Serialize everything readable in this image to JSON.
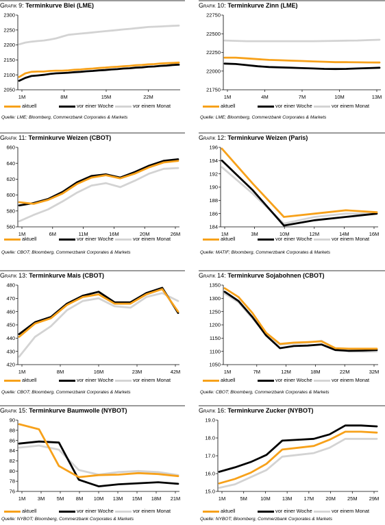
{
  "colors": {
    "aktuell": "#F7A11A",
    "week": "#000000",
    "month": "#D3D3D3",
    "rule": "#9A9A9A"
  },
  "legend": {
    "current": "aktuell",
    "week": "vor einer Woche",
    "month": "vor einem Monat"
  },
  "chart_data": [
    {
      "type": "line",
      "label_prefix": "Grafik 9:",
      "title": "Terminkurve Blei (LME)",
      "xticks": [
        "1M",
        "8M",
        "15M",
        "22M"
      ],
      "ylim": [
        2050,
        2300
      ],
      "yticks": [
        2050,
        2100,
        2150,
        2200,
        2250,
        2300
      ],
      "series": [
        {
          "name": "aktuell",
          "values": [
            2093,
            2105,
            2110,
            2111,
            2111,
            2113,
            2114,
            2114,
            2115,
            2117,
            2118,
            2120,
            2121,
            2123,
            2124,
            2126,
            2127,
            2129,
            2130,
            2132,
            2133,
            2135,
            2136,
            2138,
            2139,
            2140,
            2141
          ]
        },
        {
          "name": "vor einer Woche",
          "values": [
            2080,
            2090,
            2096,
            2098,
            2100,
            2103,
            2105,
            2106,
            2107,
            2109,
            2110,
            2112,
            2113,
            2115,
            2116,
            2118,
            2119,
            2121,
            2122,
            2124,
            2125,
            2127,
            2128,
            2130,
            2131,
            2133,
            2134
          ]
        },
        {
          "name": "vor einem Monat",
          "values": [
            2202,
            2208,
            2211,
            2213,
            2215,
            2218,
            2222,
            2228,
            2234,
            2236,
            2238,
            2240,
            2242,
            2244,
            2246,
            2248,
            2250,
            2252,
            2254,
            2256,
            2258,
            2260,
            2261,
            2262,
            2263,
            2264,
            2265
          ]
        }
      ],
      "source": "Quelle: LME; Bloomberg, Commerzbank Corporates & Markets"
    },
    {
      "type": "line",
      "label_prefix": "Grafik 10:",
      "title": "Terminkurve Zinn (LME)",
      "xticks": [
        "1M",
        "4M",
        "7M",
        "10M",
        "13M"
      ],
      "ylim": [
        21750,
        22750
      ],
      "yticks": [
        21750,
        22000,
        22250,
        22500,
        22750
      ],
      "series": [
        {
          "name": "aktuell",
          "values": [
            22180,
            22180,
            22170,
            22160,
            22150,
            22145,
            22140,
            22135,
            22130,
            22125,
            22120,
            22120,
            22118,
            22116,
            22115
          ]
        },
        {
          "name": "vor einer Woche",
          "values": [
            22100,
            22095,
            22080,
            22065,
            22055,
            22050,
            22045,
            22040,
            22035,
            22030,
            22028,
            22030,
            22035,
            22040,
            22045
          ]
        },
        {
          "name": "vor einem Monat",
          "values": [
            22410,
            22405,
            22400,
            22400,
            22400,
            22400,
            22400,
            22400,
            22400,
            22402,
            22405,
            22408,
            22410,
            22415,
            22420
          ]
        }
      ],
      "source": "Quelle: LME; Bloomberg, Commerzbank Corporates & Markets"
    },
    {
      "type": "line",
      "label_prefix": "Grafik 11:",
      "title": "Terminkurve Weizen (CBOT)",
      "xticks": [
        "1M",
        "6M",
        "11M",
        "16M",
        "20M",
        "26M"
      ],
      "ylim": [
        560,
        660
      ],
      "yticks": [
        560,
        580,
        600,
        620,
        640,
        660
      ],
      "series": [
        {
          "name": "aktuell",
          "values": [
            591,
            589,
            594,
            602,
            614,
            622,
            625,
            621,
            627,
            635,
            641,
            643
          ]
        },
        {
          "name": "vor einer Woche",
          "values": [
            587,
            590,
            595,
            604,
            616,
            624,
            626,
            622,
            629,
            637,
            643,
            645
          ]
        },
        {
          "name": "vor einem Monat",
          "values": [
            567,
            575,
            582,
            592,
            603,
            612,
            615,
            610,
            618,
            627,
            633,
            634
          ]
        }
      ],
      "source": "Quelle: CBOT; Bloomberg, Commerzbank Corporates & Markets"
    },
    {
      "type": "line",
      "label_prefix": "Grafik 12:",
      "title": "Terminkurve Weizen (Paris)",
      "xticks": [
        "1M",
        "3M",
        "10M",
        "12M",
        "14M",
        "16M"
      ],
      "ylim": [
        184,
        196
      ],
      "yticks": [
        184,
        186,
        188,
        190,
        192,
        194,
        196
      ],
      "series": [
        {
          "name": "aktuell",
          "values": [
            195.8,
            190.5,
            185.5,
            186.0,
            186.5,
            186.2
          ]
        },
        {
          "name": "vor einer Woche",
          "values": [
            194.0,
            189.5,
            184.2,
            185.0,
            185.5,
            186.0
          ]
        },
        {
          "name": "vor einem Monat",
          "values": [
            193.0,
            189.0,
            184.5,
            185.5,
            186.0,
            186.0
          ]
        }
      ],
      "source": "Quelle: MATIF; Bloomberg, Commerzbank Corporates & Markets"
    },
    {
      "type": "line",
      "label_prefix": "Grafik 13:",
      "title": "Terminkurve Mais (CBOT)",
      "xticks": [
        "1M",
        "8M",
        "16M",
        "23M",
        "42M"
      ],
      "ylim": [
        420,
        480
      ],
      "yticks": [
        420,
        430,
        440,
        450,
        460,
        470,
        480
      ],
      "series": [
        {
          "name": "aktuell",
          "values": [
            441,
            451,
            455,
            465,
            471,
            473,
            466,
            466,
            473,
            477,
            460
          ]
        },
        {
          "name": "vor einer Woche",
          "values": [
            443,
            452,
            456,
            466,
            472,
            475,
            467,
            467,
            474,
            478,
            459
          ]
        },
        {
          "name": "vor einem Monat",
          "values": [
            426,
            441,
            449,
            461,
            468,
            470,
            464,
            463,
            471,
            474,
            468
          ]
        }
      ],
      "source": "Quelle: CBOT; Bloomberg, Commerzbank Corporates & Markets"
    },
    {
      "type": "line",
      "label_prefix": "Grafik 14:",
      "title": "Terminkurve Sojabohnen (CBOT)",
      "xticks": [
        "1M",
        "7M",
        "12M",
        "18M",
        "22M",
        "32M"
      ],
      "ylim": [
        1050,
        1350
      ],
      "yticks": [
        1050,
        1100,
        1150,
        1200,
        1250,
        1300,
        1350
      ],
      "series": [
        {
          "name": "aktuell",
          "values": [
            1338,
            1305,
            1245,
            1170,
            1128,
            1133,
            1135,
            1138,
            1112,
            1110,
            1110,
            1110
          ]
        },
        {
          "name": "vor einer Woche",
          "values": [
            1325,
            1290,
            1230,
            1160,
            1112,
            1120,
            1122,
            1126,
            1105,
            1102,
            1103,
            1105
          ]
        },
        {
          "name": "vor einem Monat",
          "values": [
            1318,
            1285,
            1225,
            1165,
            1125,
            1130,
            1133,
            1140,
            1110,
            1100,
            1098,
            1100
          ]
        }
      ],
      "source": "Quelle: CBOT; Bloomberg, Commerzbank Corporates & Markets"
    },
    {
      "type": "line",
      "label_prefix": "Grafik 15:",
      "title": "Terminkurve Baumwolle (NYBOT)",
      "xticks": [
        "1M",
        "3M",
        "5M",
        "8M",
        "10M",
        "13M",
        "15M",
        "18M",
        "21M"
      ],
      "ylim": [
        76,
        90
      ],
      "yticks": [
        76,
        78,
        80,
        82,
        84,
        86,
        88,
        90
      ],
      "series": [
        {
          "name": "aktuell",
          "values": [
            89.2,
            88.2,
            81.0,
            78.8,
            79.2,
            79.3,
            79.6,
            79.4,
            79.0
          ]
        },
        {
          "name": "vor einer Woche",
          "values": [
            85.4,
            85.8,
            85.6,
            78.3,
            77.0,
            77.4,
            77.6,
            77.8,
            77.5
          ]
        },
        {
          "name": "vor einem Monat",
          "values": [
            84.6,
            85.0,
            84.2,
            80.2,
            79.3,
            79.8,
            80.0,
            79.8,
            79.2
          ]
        }
      ],
      "source": "Quelle: NYBOT; Bloomberg, Commerzbank Corporates & Markets"
    },
    {
      "type": "line",
      "label_prefix": "Grafik 16:",
      "title": "Terminkurve Zucker (NYBOT)",
      "xticks": [
        "1M",
        "5M",
        "10M",
        "13M",
        "17M",
        "20M",
        "25M",
        "29M"
      ],
      "ylim": [
        15.0,
        19.0
      ],
      "yticks": [
        "15.0",
        "16.0",
        "17.0",
        "18.0",
        "19.0"
      ],
      "series": [
        {
          "name": "aktuell",
          "values": [
            15.45,
            15.7,
            16.05,
            16.55,
            17.35,
            17.45,
            17.55,
            17.9,
            18.35,
            18.35,
            18.3
          ]
        },
        {
          "name": "vor einer Woche",
          "values": [
            16.1,
            16.35,
            16.65,
            17.05,
            17.85,
            17.9,
            17.95,
            18.2,
            18.7,
            18.7,
            18.65
          ]
        },
        {
          "name": "vor einem Monat",
          "values": [
            15.2,
            15.4,
            15.8,
            16.2,
            16.95,
            17.05,
            17.15,
            17.45,
            17.95,
            17.95,
            17.95
          ]
        }
      ],
      "source": "Quelle: NYBOT; Bloomberg, Commerzbank Corporates & Markets"
    }
  ]
}
